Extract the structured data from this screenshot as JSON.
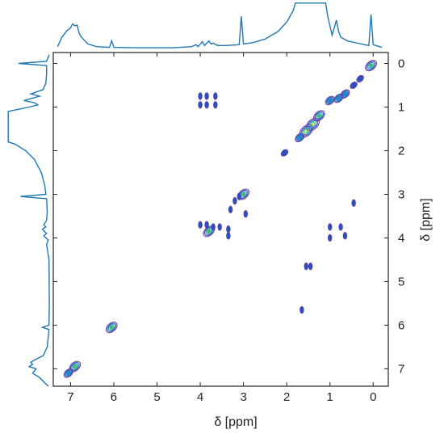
{
  "chart_data": {
    "type": "contour",
    "xlabel": "δ [ppm]",
    "ylabel": "δ [ppm]",
    "xlim": [
      7.4,
      -0.35
    ],
    "ylim": [
      -0.25,
      7.4
    ],
    "x_ticks": [
      7,
      6,
      5,
      4,
      3,
      2,
      1,
      0
    ],
    "y_ticks": [
      0,
      1,
      2,
      3,
      4,
      5,
      6,
      7
    ],
    "grid": false,
    "colors": {
      "spectrum_trace": "#1f77b4",
      "axis": "#222222",
      "contour_outer": "#6a3d9a",
      "contour_mid": "#2a4fbf",
      "contour_inner": "#1e88c8",
      "contour_peak": "#3fbf70",
      "contour_max": "#c8e63c"
    },
    "diagonal_peaks": [
      {
        "x": 0.05,
        "y": 0.05,
        "level": 3
      },
      {
        "x": 0.3,
        "y": 0.35,
        "level": 1
      },
      {
        "x": 0.45,
        "y": 0.5,
        "level": 1
      },
      {
        "x": 0.65,
        "y": 0.7,
        "level": 2
      },
      {
        "x": 0.8,
        "y": 0.8,
        "level": 2
      },
      {
        "x": 1.0,
        "y": 0.85,
        "level": 2
      },
      {
        "x": 1.25,
        "y": 1.2,
        "level": 3
      },
      {
        "x": 1.4,
        "y": 1.4,
        "level": 4
      },
      {
        "x": 1.55,
        "y": 1.55,
        "level": 4
      },
      {
        "x": 1.7,
        "y": 1.7,
        "level": 2
      },
      {
        "x": 2.05,
        "y": 2.05,
        "level": 1
      },
      {
        "x": 3.0,
        "y": 3.0,
        "level": 3
      },
      {
        "x": 3.8,
        "y": 3.85,
        "level": 3
      },
      {
        "x": 6.05,
        "y": 6.05,
        "level": 3
      },
      {
        "x": 6.9,
        "y": 6.95,
        "level": 3
      },
      {
        "x": 7.05,
        "y": 7.1,
        "level": 2
      }
    ],
    "cross_peaks": [
      {
        "x": 4.0,
        "y": 0.75
      },
      {
        "x": 3.85,
        "y": 0.75
      },
      {
        "x": 3.65,
        "y": 0.75
      },
      {
        "x": 4.0,
        "y": 0.95
      },
      {
        "x": 3.85,
        "y": 0.95
      },
      {
        "x": 3.65,
        "y": 0.95
      },
      {
        "x": 4.0,
        "y": 3.7
      },
      {
        "x": 3.85,
        "y": 3.7
      },
      {
        "x": 3.7,
        "y": 3.75
      },
      {
        "x": 3.55,
        "y": 3.75
      },
      {
        "x": 3.35,
        "y": 3.8
      },
      {
        "x": 3.35,
        "y": 3.95
      },
      {
        "x": 3.2,
        "y": 3.15
      },
      {
        "x": 3.1,
        "y": 3.05
      },
      {
        "x": 2.95,
        "y": 3.45
      },
      {
        "x": 3.3,
        "y": 3.35
      },
      {
        "x": 1.0,
        "y": 3.75
      },
      {
        "x": 0.75,
        "y": 3.75
      },
      {
        "x": 0.65,
        "y": 3.95
      },
      {
        "x": 1.0,
        "y": 4.0
      },
      {
        "x": 0.45,
        "y": 3.2
      },
      {
        "x": 1.55,
        "y": 4.65
      },
      {
        "x": 1.45,
        "y": 4.65
      },
      {
        "x": 1.65,
        "y": 5.65
      }
    ],
    "top_spectrum": [
      [
        7.3,
        0.05
      ],
      [
        7.2,
        0.3
      ],
      [
        7.1,
        0.45
      ],
      [
        7.0,
        0.55
      ],
      [
        6.95,
        0.65
      ],
      [
        6.9,
        0.6
      ],
      [
        6.85,
        0.62
      ],
      [
        6.8,
        0.4
      ],
      [
        6.75,
        0.3
      ],
      [
        6.6,
        0.12
      ],
      [
        6.4,
        0.05
      ],
      [
        6.1,
        0.03
      ],
      [
        6.05,
        0.2
      ],
      [
        6.0,
        0.03
      ],
      [
        5.5,
        0.02
      ],
      [
        4.6,
        0.02
      ],
      [
        4.2,
        0.05
      ],
      [
        4.1,
        0.1
      ],
      [
        4.05,
        0.05
      ],
      [
        3.95,
        0.18
      ],
      [
        3.9,
        0.08
      ],
      [
        3.8,
        0.2
      ],
      [
        3.75,
        0.12
      ],
      [
        3.7,
        0.14
      ],
      [
        3.6,
        0.08
      ],
      [
        3.4,
        0.08
      ],
      [
        3.1,
        0.1
      ],
      [
        3.05,
        0.85
      ],
      [
        3.0,
        0.12
      ],
      [
        2.8,
        0.15
      ],
      [
        2.5,
        0.25
      ],
      [
        2.2,
        0.45
      ],
      [
        2.0,
        0.7
      ],
      [
        1.85,
        1.0
      ],
      [
        1.8,
        1.2
      ],
      [
        1.1,
        1.2
      ],
      [
        1.05,
        0.85
      ],
      [
        1.0,
        0.6
      ],
      [
        0.95,
        0.35
      ],
      [
        0.9,
        0.55
      ],
      [
        0.85,
        0.75
      ],
      [
        0.8,
        0.45
      ],
      [
        0.75,
        0.3
      ],
      [
        0.6,
        0.2
      ],
      [
        0.4,
        0.15
      ],
      [
        0.2,
        0.1
      ],
      [
        0.1,
        0.08
      ],
      [
        0.05,
        0.9
      ],
      [
        0.0,
        0.1
      ],
      [
        -0.2,
        0.03
      ]
    ],
    "left_spectrum": [
      [
        -0.2,
        0.02
      ],
      [
        -0.05,
        0.1
      ],
      [
        0.0,
        0.9
      ],
      [
        0.05,
        0.1
      ],
      [
        0.25,
        0.1
      ],
      [
        0.45,
        0.12
      ],
      [
        0.6,
        0.2
      ],
      [
        0.7,
        0.55
      ],
      [
        0.75,
        0.3
      ],
      [
        0.85,
        0.75
      ],
      [
        0.9,
        0.45
      ],
      [
        0.95,
        0.35
      ],
      [
        1.0,
        0.6
      ],
      [
        1.05,
        0.9
      ],
      [
        1.1,
        1.2
      ],
      [
        1.8,
        1.2
      ],
      [
        1.85,
        1.0
      ],
      [
        2.0,
        0.7
      ],
      [
        2.2,
        0.45
      ],
      [
        2.5,
        0.25
      ],
      [
        2.8,
        0.15
      ],
      [
        3.0,
        0.12
      ],
      [
        3.05,
        0.85
      ],
      [
        3.1,
        0.1
      ],
      [
        3.4,
        0.08
      ],
      [
        3.6,
        0.1
      ],
      [
        3.7,
        0.18
      ],
      [
        3.75,
        0.12
      ],
      [
        3.8,
        0.22
      ],
      [
        3.9,
        0.1
      ],
      [
        3.95,
        0.18
      ],
      [
        4.05,
        0.05
      ],
      [
        4.15,
        0.1
      ],
      [
        4.5,
        0.03
      ],
      [
        5.5,
        0.02
      ],
      [
        6.0,
        0.03
      ],
      [
        6.05,
        0.22
      ],
      [
        6.1,
        0.03
      ],
      [
        6.5,
        0.08
      ],
      [
        6.7,
        0.2
      ],
      [
        6.8,
        0.45
      ],
      [
        6.85,
        0.55
      ],
      [
        6.9,
        0.5
      ],
      [
        6.95,
        0.6
      ],
      [
        7.0,
        0.4
      ],
      [
        7.1,
        0.5
      ],
      [
        7.2,
        0.3
      ],
      [
        7.4,
        0.05
      ]
    ]
  }
}
